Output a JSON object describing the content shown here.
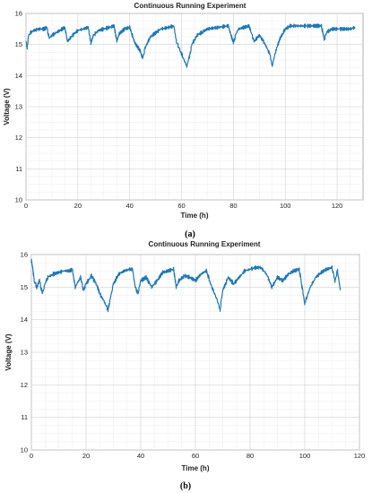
{
  "chart_data": [
    {
      "type": "line",
      "caption": "(a)",
      "title": "Continuous Running Experiment",
      "xlabel": "Time (h)",
      "ylabel": "Voltage (V)",
      "xlim": [
        0,
        130
      ],
      "ylim": [
        10,
        16
      ],
      "xticks": [
        0,
        20,
        40,
        60,
        80,
        100,
        120
      ],
      "yticks": [
        10,
        11,
        12,
        13,
        14,
        15,
        16
      ],
      "grid": true,
      "color": "#1f77b4",
      "series": [
        {
          "x": [
            0,
            0.5,
            1,
            2,
            3,
            5,
            7,
            8,
            9,
            10,
            12,
            14,
            15,
            16,
            18,
            20,
            22,
            24,
            25,
            26,
            28,
            30,
            32,
            34,
            35,
            36,
            38,
            40,
            42,
            44,
            45,
            46,
            48,
            52,
            55,
            57,
            58,
            59,
            60,
            61,
            62,
            63,
            64,
            66,
            70,
            74,
            78,
            80,
            81,
            82,
            84,
            86,
            88,
            90,
            92,
            94,
            95,
            96,
            98,
            100,
            102,
            104,
            108,
            112,
            114,
            115,
            116,
            118,
            122,
            125,
            127
          ],
          "y": [
            15.1,
            14.9,
            15.3,
            15.4,
            15.45,
            15.5,
            15.5,
            15.55,
            15.2,
            15.3,
            15.4,
            15.5,
            15.55,
            15.1,
            15.3,
            15.45,
            15.5,
            15.55,
            15.05,
            15.3,
            15.45,
            15.5,
            15.55,
            15.6,
            15.1,
            15.35,
            15.5,
            15.55,
            15.05,
            14.8,
            14.55,
            14.9,
            15.25,
            15.5,
            15.55,
            15.6,
            15.1,
            14.9,
            14.7,
            14.5,
            14.3,
            14.6,
            15.0,
            15.3,
            15.5,
            15.55,
            15.6,
            15.05,
            15.35,
            15.5,
            15.55,
            15.6,
            15.1,
            15.3,
            15.05,
            14.7,
            14.3,
            14.7,
            15.2,
            15.5,
            15.6,
            15.6,
            15.6,
            15.6,
            15.6,
            15.15,
            15.4,
            15.5,
            15.5,
            15.5,
            15.55
          ]
        }
      ]
    },
    {
      "type": "line",
      "caption": "(b)",
      "title": "Continuous Running Experiment",
      "xlabel": "Time (h)",
      "ylabel": "Voltage (V)",
      "xlim": [
        0,
        120
      ],
      "ylim": [
        10,
        16
      ],
      "xticks": [
        0,
        20,
        40,
        60,
        80,
        100,
        120
      ],
      "yticks": [
        10,
        11,
        12,
        13,
        14,
        15,
        16
      ],
      "grid": true,
      "color": "#1f77b4",
      "series": [
        {
          "x": [
            0,
            0.5,
            1,
            2,
            3,
            4,
            5,
            6,
            8,
            10,
            12,
            14,
            15,
            16,
            18,
            19,
            20,
            22,
            24,
            25,
            27,
            28,
            29,
            30,
            32,
            34,
            36,
            37,
            38,
            39,
            40,
            42,
            44,
            46,
            48,
            50,
            52,
            53,
            54,
            56,
            58,
            60,
            62,
            64,
            66,
            68,
            69,
            70,
            72,
            74,
            76,
            78,
            80,
            82,
            84,
            86,
            88,
            90,
            92,
            94,
            96,
            98,
            99,
            100,
            102,
            104,
            106,
            108,
            110,
            111,
            112,
            113
          ],
          "y": [
            15.8,
            15.6,
            15.2,
            15.0,
            15.2,
            14.8,
            15.1,
            15.3,
            15.4,
            15.45,
            15.5,
            15.5,
            15.55,
            15.0,
            15.3,
            14.9,
            15.1,
            15.35,
            15.05,
            14.8,
            14.5,
            14.3,
            14.7,
            15.1,
            15.4,
            15.5,
            15.55,
            15.55,
            15.0,
            14.8,
            15.2,
            15.3,
            15.0,
            15.2,
            15.45,
            15.5,
            15.55,
            15.0,
            15.2,
            15.35,
            15.3,
            15.2,
            15.4,
            15.5,
            15.0,
            14.6,
            14.3,
            14.9,
            15.3,
            15.1,
            15.3,
            15.5,
            15.55,
            15.6,
            15.6,
            15.4,
            15.0,
            15.3,
            15.2,
            15.4,
            15.5,
            15.55,
            15.0,
            14.5,
            15.0,
            15.3,
            15.45,
            15.55,
            15.6,
            15.2,
            15.5,
            14.9
          ]
        }
      ]
    }
  ]
}
